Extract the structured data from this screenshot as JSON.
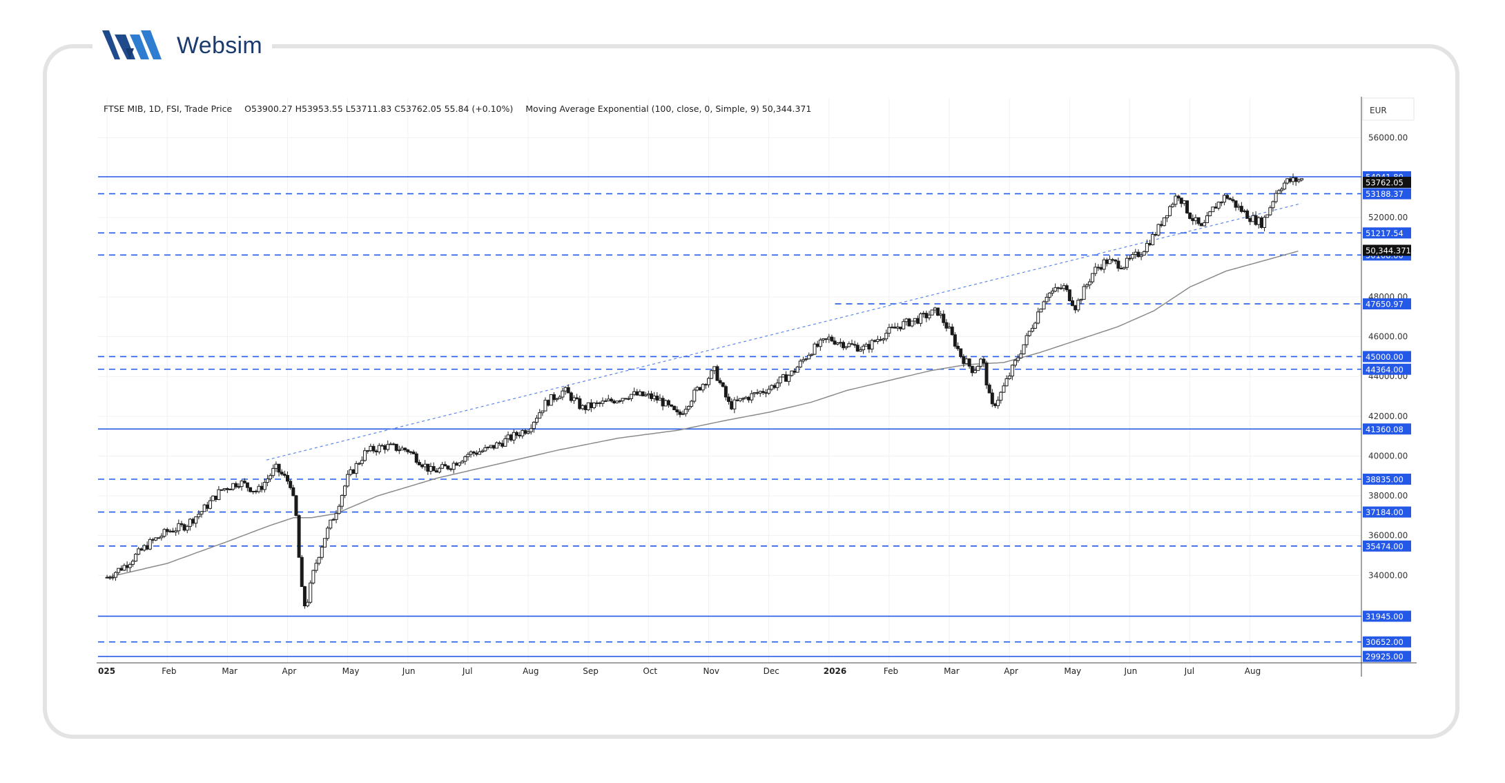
{
  "brand": {
    "name": "Websim",
    "logo_icon": "websim-w-logo-icon",
    "logo_colors": [
      "#1f4a8c",
      "#2f7dd1"
    ]
  },
  "legend": {
    "instrument": "FTSE MIB, 1D, FSI, Trade Price",
    "ohlc": "O53900.27  H53953.55  L53711.83  C53762.05  55.84 (+0.10%)",
    "indicator": "Moving Average Exponential (100, close, 0, Simple, 9)  50,344.371"
  },
  "colors": {
    "level_line": "#2458e6",
    "candle": "#1a1a1a",
    "ema": "#8a8a8a",
    "grid": "#f1f1f1",
    "badge": "#2458e6",
    "price_badge": "#111111"
  },
  "chart_data": {
    "type": "candlestick",
    "currency": "EUR",
    "y_axis_ticks": [
      34000,
      36000,
      38000,
      40000,
      42000,
      44000,
      46000,
      48000,
      52000,
      56000
    ],
    "ylim": [
      29600,
      58000
    ],
    "x_axis_ticks": [
      "2025",
      "Feb",
      "Mar",
      "Apr",
      "May",
      "Jun",
      "Jul",
      "Aug",
      "Sep",
      "Oct",
      "Nov",
      "Dec",
      "2026",
      "Feb",
      "Mar",
      "Apr",
      "May",
      "Jun",
      "Jul",
      "Aug"
    ],
    "levels": [
      {
        "value": 54041.8,
        "label": "54041.80",
        "style": "solid"
      },
      {
        "value": 53188.37,
        "label": "53188.37",
        "style": "dashed"
      },
      {
        "value": 51217.54,
        "label": "51217.54",
        "style": "dashed"
      },
      {
        "value": 50108.0,
        "label": "50108.00",
        "style": "dashed"
      },
      {
        "value": 47650.97,
        "label": "47650.97",
        "style": "dashed",
        "from_month": 12.1
      },
      {
        "value": 45000.0,
        "label": "45000.00",
        "style": "dashed"
      },
      {
        "value": 44364.0,
        "label": "44364.00",
        "style": "dashed"
      },
      {
        "value": 41360.08,
        "label": "41360.08",
        "style": "solid"
      },
      {
        "value": 38835.0,
        "label": "38835.00",
        "style": "dashed"
      },
      {
        "value": 37184.0,
        "label": "37184.00",
        "style": "dashed"
      },
      {
        "value": 35474.0,
        "label": "35474.00",
        "style": "dashed"
      },
      {
        "value": 31945.0,
        "label": "31945.00",
        "style": "solid"
      },
      {
        "value": 30652.0,
        "label": "30652.00",
        "style": "dashed"
      },
      {
        "value": 29925.0,
        "label": "29925.00",
        "style": "solid"
      }
    ],
    "last_price": {
      "value": 53762.05,
      "label": "53762.05"
    },
    "ema_value": {
      "value": 50344.371,
      "label": "50,344.371"
    },
    "trendline": {
      "from": {
        "month": 2.65,
        "value": 39800
      },
      "to": {
        "month": 19.85,
        "value": 52700
      }
    },
    "price_path": [
      [
        0,
        33900
      ],
      [
        0.3,
        34500
      ],
      [
        0.7,
        35600
      ],
      [
        1.0,
        36200
      ],
      [
        1.3,
        36500
      ],
      [
        1.6,
        37300
      ],
      [
        1.9,
        38300
      ],
      [
        2.2,
        38700
      ],
      [
        2.5,
        38200
      ],
      [
        2.8,
        39400
      ],
      [
        3.05,
        38600
      ],
      [
        3.15,
        36800
      ],
      [
        3.22,
        33500
      ],
      [
        3.3,
        32300
      ],
      [
        3.45,
        34400
      ],
      [
        3.6,
        35800
      ],
      [
        3.8,
        37200
      ],
      [
        4.0,
        38900
      ],
      [
        4.3,
        40200
      ],
      [
        4.6,
        40500
      ],
      [
        5.0,
        40300
      ],
      [
        5.4,
        39200
      ],
      [
        5.7,
        39500
      ],
      [
        6.0,
        40100
      ],
      [
        6.3,
        40300
      ],
      [
        6.7,
        40900
      ],
      [
        7.0,
        41400
      ],
      [
        7.3,
        42700
      ],
      [
        7.6,
        43300
      ],
      [
        7.9,
        42400
      ],
      [
        8.3,
        42700
      ],
      [
        8.7,
        43100
      ],
      [
        9.0,
        43000
      ],
      [
        9.2,
        42800
      ],
      [
        9.5,
        42000
      ],
      [
        9.8,
        43300
      ],
      [
        10.1,
        44300
      ],
      [
        10.35,
        42500
      ],
      [
        10.6,
        42900
      ],
      [
        11.0,
        43400
      ],
      [
        11.4,
        44200
      ],
      [
        11.7,
        45300
      ],
      [
        12.0,
        45900
      ],
      [
        12.3,
        45600
      ],
      [
        12.6,
        45400
      ],
      [
        12.9,
        46100
      ],
      [
        13.2,
        46600
      ],
      [
        13.5,
        46900
      ],
      [
        13.8,
        47300
      ],
      [
        14.0,
        46300
      ],
      [
        14.2,
        45000
      ],
      [
        14.4,
        44300
      ],
      [
        14.55,
        44900
      ],
      [
        14.7,
        42400
      ],
      [
        14.85,
        43100
      ],
      [
        15.05,
        44400
      ],
      [
        15.3,
        46000
      ],
      [
        15.6,
        48100
      ],
      [
        15.9,
        48500
      ],
      [
        16.1,
        47500
      ],
      [
        16.4,
        49300
      ],
      [
        16.6,
        49800
      ],
      [
        16.9,
        49600
      ],
      [
        17.2,
        50300
      ],
      [
        17.45,
        51300
      ],
      [
        17.6,
        52200
      ],
      [
        17.8,
        53200
      ],
      [
        18.0,
        52100
      ],
      [
        18.2,
        51400
      ],
      [
        18.4,
        52500
      ],
      [
        18.6,
        53100
      ],
      [
        18.8,
        52500
      ],
      [
        19.0,
        52000
      ],
      [
        19.2,
        51700
      ],
      [
        19.3,
        52300
      ],
      [
        19.45,
        53400
      ],
      [
        19.6,
        53800
      ],
      [
        19.85,
        53900
      ]
    ],
    "ema_path": [
      [
        0,
        33900
      ],
      [
        1.0,
        34600
      ],
      [
        2.0,
        35700
      ],
      [
        2.7,
        36500
      ],
      [
        3.1,
        36900
      ],
      [
        3.4,
        36900
      ],
      [
        3.8,
        37100
      ],
      [
        4.5,
        38000
      ],
      [
        5.5,
        38900
      ],
      [
        6.5,
        39600
      ],
      [
        7.5,
        40300
      ],
      [
        8.5,
        40900
      ],
      [
        9.5,
        41300
      ],
      [
        10.3,
        41800
      ],
      [
        11.0,
        42200
      ],
      [
        11.7,
        42700
      ],
      [
        12.3,
        43300
      ],
      [
        13.0,
        43800
      ],
      [
        13.7,
        44300
      ],
      [
        14.3,
        44600
      ],
      [
        14.9,
        44700
      ],
      [
        15.5,
        45200
      ],
      [
        16.1,
        45800
      ],
      [
        16.8,
        46500
      ],
      [
        17.4,
        47300
      ],
      [
        18.0,
        48500
      ],
      [
        18.6,
        49300
      ],
      [
        19.2,
        49800
      ],
      [
        19.85,
        50344
      ]
    ]
  }
}
